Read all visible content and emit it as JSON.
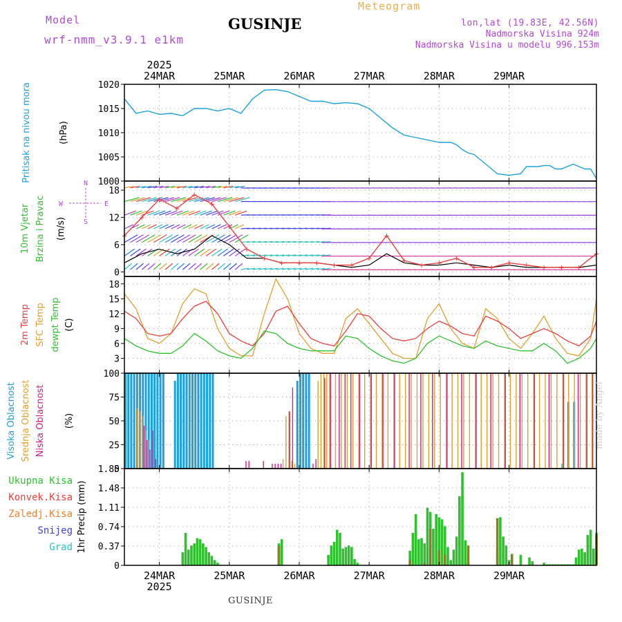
{
  "header": {
    "model_label": "Model",
    "model_name": "wrf-nmm_v3.9.1 e1km",
    "station": "GUSINJE",
    "meteogram_label": "Meteogram",
    "coords": "lon,lat (19.83E, 42.56N)",
    "elevation": "Nadmorska Visina 924m",
    "model_elevation": "Nadmorska Visina u modelu 996.153m"
  },
  "footer": {
    "station": "GUSINJE",
    "credit": "made by Angel"
  },
  "time_axis": {
    "days": [
      "24MAR",
      "25MAR",
      "26MAR",
      "27MAR",
      "28MAR",
      "29MAR"
    ],
    "year": "2025"
  },
  "colors": {
    "pressure": "#1ca0e0",
    "t2m": "#e84040",
    "tsfc": "#e0a030",
    "dewpt": "#30c030",
    "cloud_high": "#1ca0e0",
    "cloud_mid": "#e0a030",
    "cloud_low": "#d02080",
    "precip_total": "#30c030",
    "precip_conv": "#e84040",
    "precip_strat": "#f08030",
    "snow": "#4040e0",
    "hail": "#30c0c0",
    "wind_low": "#30c0c0",
    "wind_mid": "#9040e0",
    "wind_label": "#30c030",
    "gust": "#e84040"
  },
  "chart_data": [
    {
      "type": "line",
      "panel": "pressure",
      "ylabel_1": "Pritisak na nivou mora",
      "ylabel_2": "(hPa)",
      "ylim": [
        1000,
        1020
      ],
      "yticks": [
        "1000",
        "1005",
        "1010",
        "1015",
        "1020"
      ],
      "xlim_hours": [
        0,
        144
      ],
      "series": [
        {
          "values": [
            1017,
            1014,
            1014.5,
            1013.8,
            1014,
            1013.5,
            1015,
            1015,
            1014.5,
            1015,
            1014,
            1017,
            1018.8,
            1018.9,
            1018.5,
            1017.5,
            1016.5,
            1016.5,
            1016,
            1016.2,
            1016,
            1015,
            1013,
            1011,
            1009.5,
            1009,
            1008.5,
            1008,
            1008,
            1007.5,
            1006.5,
            1005.8,
            1005.5,
            1003.5,
            1001.5,
            1001.2,
            1001.5,
            1003,
            1003,
            1003,
            1003.2,
            1003.2,
            1002.5,
            1002.5,
            1003,
            1003.5,
            1003,
            1002.5,
            1002.5,
            1000.5
          ],
          "hours": [
            0,
            4,
            8,
            12,
            16,
            20,
            24,
            28,
            32,
            36,
            40,
            44,
            48,
            52,
            56,
            60,
            64,
            68,
            72,
            76,
            80,
            84,
            88,
            92,
            96,
            100,
            104,
            108,
            112,
            114,
            116,
            118,
            120,
            124,
            128,
            132,
            136,
            138,
            140,
            142,
            144,
            146,
            148,
            150,
            152,
            154,
            156,
            158,
            160,
            162
          ]
        }
      ]
    },
    {
      "type": "line",
      "panel": "wind",
      "ylabel_1": "10m Vjetar",
      "ylabel_2": "Brzina i Pravac",
      "ylabel_3": "(m/s)",
      "compass_n": "N",
      "compass_s": "S",
      "compass_w": "W",
      "compass_e": "E",
      "ylim": [
        -1,
        20
      ],
      "yticks": [
        "0",
        "6",
        "12",
        "18"
      ],
      "series": [
        {
          "name": "speed",
          "hours": [
            0,
            6,
            12,
            18,
            24,
            30,
            36,
            42,
            48,
            54,
            60,
            66,
            72,
            78,
            84,
            90,
            96,
            102,
            108,
            114,
            120,
            126,
            132,
            138,
            144,
            150,
            156,
            162
          ],
          "values": [
            2,
            4,
            5,
            4,
            5,
            8,
            6,
            3,
            3,
            2,
            2,
            2,
            1.5,
            1,
            1.5,
            4,
            2,
            1.5,
            1.5,
            2,
            1.5,
            1,
            1.5,
            1,
            1,
            1,
            1,
            1.5
          ]
        },
        {
          "name": "gust",
          "hours": [
            0,
            6,
            12,
            18,
            24,
            30,
            36,
            42,
            48,
            54,
            60,
            66,
            72,
            78,
            84,
            90,
            96,
            102,
            108,
            114,
            120,
            126,
            132,
            138,
            144,
            150,
            156,
            162
          ],
          "values": [
            8,
            12,
            16,
            14,
            17,
            15,
            10,
            5,
            3,
            2,
            2,
            2,
            1.5,
            1.5,
            3,
            8,
            2.5,
            1.5,
            2,
            3,
            1,
            1,
            2,
            1.5,
            1,
            1,
            1,
            4
          ]
        }
      ]
    },
    {
      "type": "line",
      "panel": "temperature",
      "ylabel_1": "2m Temp",
      "ylabel_2": "SFC Temp",
      "ylabel_3": "dewpt Temp",
      "ylabel_4": "(C)",
      "ylim": [
        0,
        19.5
      ],
      "yticks": [
        "3",
        "6",
        "9",
        "12",
        "15",
        "18"
      ],
      "series": [
        {
          "name": "2m Temp",
          "hours": [
            0,
            4,
            8,
            12,
            16,
            20,
            24,
            28,
            32,
            36,
            40,
            44,
            48,
            52,
            56,
            60,
            64,
            68,
            72,
            76,
            80,
            84,
            88,
            92,
            96,
            100,
            104,
            108,
            112,
            116,
            120,
            124,
            128,
            132,
            136,
            140,
            144,
            148,
            152,
            156,
            160,
            162
          ],
          "values": [
            12.5,
            11,
            8,
            7.5,
            8,
            11,
            13.5,
            14.5,
            12,
            8,
            6.5,
            5.5,
            8,
            12.5,
            13.5,
            10,
            7,
            6,
            5.5,
            8.5,
            12,
            11.5,
            9,
            7,
            6.5,
            7,
            9,
            10.5,
            9.5,
            8,
            7.5,
            11.5,
            10.5,
            9,
            7,
            8,
            9,
            8,
            6.5,
            5.5,
            7.5,
            10.5
          ]
        },
        {
          "name": "SFC Temp",
          "hours": [
            0,
            4,
            8,
            12,
            16,
            20,
            24,
            28,
            32,
            36,
            40,
            44,
            48,
            52,
            56,
            60,
            64,
            68,
            72,
            76,
            80,
            84,
            88,
            92,
            96,
            100,
            104,
            108,
            112,
            116,
            120,
            124,
            128,
            132,
            136,
            140,
            144,
            148,
            152,
            156,
            160,
            162
          ],
          "values": [
            16,
            13,
            7,
            6,
            8,
            14,
            17,
            16,
            9,
            5,
            3.5,
            3.5,
            12,
            19,
            15,
            8,
            5,
            4,
            4,
            11,
            13,
            10,
            7,
            4,
            3,
            3,
            11,
            14,
            9,
            6,
            5,
            13,
            11,
            7,
            5,
            8,
            11.5,
            7,
            4,
            3.5,
            7,
            15
          ]
        },
        {
          "name": "dewpt Temp",
          "hours": [
            0,
            4,
            8,
            12,
            16,
            20,
            24,
            28,
            32,
            36,
            40,
            44,
            48,
            52,
            56,
            60,
            64,
            68,
            72,
            76,
            80,
            84,
            88,
            92,
            96,
            100,
            104,
            108,
            112,
            116,
            120,
            124,
            128,
            132,
            136,
            140,
            144,
            148,
            152,
            156,
            160,
            162
          ],
          "values": [
            7,
            5.5,
            4.5,
            4,
            4,
            5.5,
            8,
            6.5,
            4.5,
            3.5,
            3,
            5,
            8.5,
            8,
            6,
            5,
            4.5,
            4.5,
            4.5,
            7.5,
            7,
            5,
            3.5,
            2.5,
            2,
            3,
            6,
            7.5,
            6.5,
            5.5,
            5,
            6.5,
            5.5,
            5,
            4.5,
            4.5,
            6,
            4.5,
            2,
            3,
            5,
            7
          ]
        }
      ]
    },
    {
      "type": "bar",
      "panel": "clouds",
      "ylabel_1": "Visoka Oblacnost",
      "ylabel_2": "Srednja Oblacnost",
      "ylabel_3": "Niska Oblacnost",
      "ylabel_4": "(%)",
      "ylim": [
        0,
        100
      ],
      "yticks": [
        "0",
        "25",
        "50",
        "75",
        "100"
      ],
      "series": [
        {
          "name": "Visoka Oblacnost",
          "hours": [
            0,
            1,
            2,
            3,
            4,
            5,
            6,
            7,
            8,
            9,
            10,
            11,
            12,
            13,
            17,
            18,
            19,
            20,
            21,
            22,
            23,
            24,
            25,
            26,
            27,
            28,
            29,
            30,
            59,
            60,
            61,
            62,
            63,
            150,
            152,
            154
          ],
          "values": [
            100,
            100,
            100,
            100,
            100,
            100,
            100,
            100,
            100,
            100,
            100,
            100,
            100,
            100,
            92,
            100,
            100,
            100,
            100,
            100,
            100,
            100,
            100,
            100,
            100,
            100,
            100,
            100,
            92,
            100,
            100,
            100,
            100,
            5,
            70,
            70
          ]
        },
        {
          "name": "Srednja Oblacnost",
          "hours": [
            4,
            5,
            6,
            7,
            8,
            54,
            55,
            56,
            57,
            58,
            66,
            67,
            68,
            69,
            70,
            72,
            74,
            76,
            78,
            80,
            82,
            84,
            86,
            88,
            90,
            92,
            94,
            96,
            98,
            100,
            102,
            104,
            106,
            108,
            110,
            112,
            114,
            116,
            118,
            120,
            122,
            124,
            126,
            128,
            130,
            132,
            134,
            136,
            138,
            140,
            142,
            144,
            146,
            148,
            150,
            152,
            154,
            156,
            158,
            160
          ],
          "values": [
            63,
            60,
            55,
            40,
            30,
            10,
            55,
            60,
            8,
            5,
            92,
            100,
            100,
            100,
            100,
            100,
            100,
            100,
            100,
            100,
            100,
            100,
            100,
            100,
            100,
            100,
            100,
            100,
            100,
            100,
            100,
            100,
            100,
            100,
            100,
            100,
            100,
            100,
            100,
            100,
            100,
            100,
            100,
            100,
            100,
            100,
            100,
            100,
            100,
            100,
            100,
            100,
            100,
            100,
            100,
            100,
            100,
            100,
            100,
            100
          ]
        },
        {
          "name": "Niska Oblacnost",
          "hours": [
            6,
            7,
            8,
            9,
            10,
            41,
            42,
            47,
            50,
            51,
            52,
            53,
            56,
            57,
            64,
            65,
            68,
            70,
            73,
            75,
            77,
            80,
            84,
            88,
            92,
            97,
            101,
            105,
            110,
            115,
            120,
            125,
            130,
            135,
            140,
            145,
            150,
            155,
            158,
            160
          ],
          "values": [
            45,
            30,
            20,
            40,
            10,
            8,
            8,
            8,
            5,
            5,
            5,
            5,
            60,
            85,
            5,
            10,
            95,
            100,
            100,
            100,
            100,
            100,
            100,
            100,
            100,
            100,
            100,
            100,
            100,
            100,
            100,
            100,
            100,
            100,
            100,
            100,
            100,
            100,
            100,
            100
          ]
        }
      ]
    },
    {
      "type": "bar",
      "panel": "precip",
      "ylabel": "1hr Precip (mm)",
      "ylim": [
        0,
        1.85
      ],
      "yticks": [
        "0",
        "0.37",
        "0.74",
        "1.11",
        "1.48",
        "1.85"
      ],
      "legend": [
        "Ukupna Kisa",
        "Konvek.Kisa",
        "Zaledj.Kisa",
        "Snijeg",
        "Grad"
      ],
      "series": [
        {
          "name": "Ukupna Kisa",
          "hours": [
            20,
            21,
            22,
            23,
            24,
            25,
            26,
            27,
            28,
            29,
            30,
            31,
            32,
            53,
            54,
            70,
            71,
            72,
            73,
            74,
            75,
            76,
            77,
            78,
            79,
            80,
            98,
            99,
            100,
            101,
            102,
            103,
            104,
            105,
            106,
            107,
            108,
            109,
            110,
            111,
            112,
            113,
            114,
            115,
            116,
            117,
            118,
            128,
            129,
            130,
            131,
            132,
            133,
            136,
            139,
            140,
            144,
            145,
            146,
            147,
            148,
            149,
            150,
            151,
            152,
            153,
            154,
            155,
            156,
            157,
            158,
            159,
            160,
            161,
            162
          ],
          "values": [
            0.25,
            0.62,
            0.3,
            0.38,
            0.42,
            0.52,
            0.5,
            0.42,
            0.35,
            0.25,
            0.18,
            0.1,
            0.05,
            0.42,
            0.5,
            0.2,
            0.38,
            0.45,
            0.68,
            0.62,
            0.32,
            0.35,
            0.38,
            0.35,
            0.12,
            0.05,
            0.28,
            0.62,
            0.98,
            0.5,
            0.52,
            0.42,
            1.1,
            1.02,
            0.7,
            0.98,
            0.92,
            0.88,
            0.75,
            0.35,
            0.1,
            0.3,
            0.55,
            1.32,
            1.78,
            0.48,
            0.05,
            0.25,
            0.92,
            0.55,
            0.38,
            0.1,
            0.22,
            0.2,
            0.15,
            0.08,
            0.05,
            0.02,
            0.02,
            0.02,
            0.02,
            0.02,
            0.02,
            0.02,
            0.02,
            0.02,
            0.02,
            0.15,
            0.3,
            0.32,
            0.25,
            0.58,
            0.68,
            0.32,
            0.62
          ]
        },
        {
          "name": "Konvek.Kisa",
          "hours": [
            53,
            98,
            103,
            105,
            108,
            110,
            118,
            128,
            133,
            162
          ],
          "values": [
            0.38,
            0.1,
            0.05,
            0.7,
            0.3,
            0.2,
            0.38,
            0.9,
            0.2,
            0.58
          ]
        }
      ]
    }
  ]
}
